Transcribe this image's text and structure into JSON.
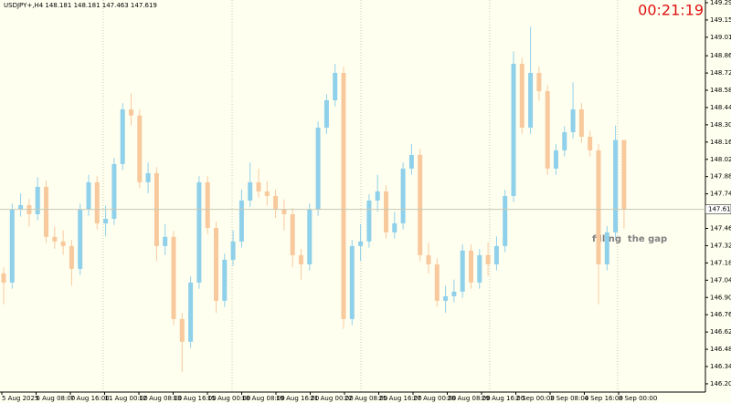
{
  "chart_data": {
    "type": "candlestick",
    "title": "USDJPY+,H4  148.181 148.181 147.463 147.619",
    "clock": "00:21:19",
    "annotation": "filling  the gap",
    "up_color": "#8fd0ea",
    "down_color": "#f8c99c",
    "ylim": [
      146.138,
      149.317
    ],
    "yticks": [
      146.205,
      146.345,
      146.485,
      146.625,
      146.765,
      146.905,
      147.045,
      147.185,
      147.325,
      147.465,
      147.745,
      147.885,
      148.025,
      148.165,
      148.305,
      148.445,
      148.585,
      148.725,
      148.865,
      149.015,
      149.155,
      149.295
    ],
    "x_labels": [
      "5 Aug 2025",
      "6 Aug 08:00",
      "7 Aug 16:00",
      "11 Aug 00:00",
      "12 Aug 08:00",
      "13 Aug 16:00",
      "15 Aug 00:00",
      "18 Aug 08:00",
      "19 Aug 16:00",
      "21 Aug 00:00",
      "22 Aug 08:00",
      "25 Aug 16:00",
      "27 Aug 00:00",
      "28 Aug 08:00",
      "29 Aug 16:00",
      "2 Sep 00:00",
      "3 Sep 08:00",
      "4 Sep 16:00",
      "8 Sep 00:00"
    ],
    "ohlc": [
      [
        147.1,
        147.15,
        146.85,
        147.026
      ],
      [
        147.026,
        147.667,
        146.976,
        147.617
      ],
      [
        147.617,
        147.75,
        147.56,
        147.654
      ],
      [
        147.654,
        147.704,
        147.48,
        147.58
      ],
      [
        147.58,
        147.88,
        147.53,
        147.802
      ],
      [
        147.802,
        147.852,
        147.346,
        147.396
      ],
      [
        147.396,
        147.48,
        147.3,
        147.359
      ],
      [
        147.359,
        147.45,
        147.25,
        147.322
      ],
      [
        147.322,
        147.372,
        147.0,
        147.137
      ],
      [
        147.137,
        147.667,
        147.087,
        147.617
      ],
      [
        147.617,
        147.9,
        147.567,
        147.839
      ],
      [
        147.839,
        147.889,
        147.456,
        147.506
      ],
      [
        147.506,
        147.65,
        147.4,
        147.543
      ],
      [
        147.543,
        148.037,
        147.493,
        147.987
      ],
      [
        147.987,
        148.48,
        147.937,
        148.43
      ],
      [
        148.43,
        148.56,
        148.3,
        148.38
      ],
      [
        148.38,
        148.43,
        147.789,
        147.839
      ],
      [
        147.839,
        148.0,
        147.75,
        147.913
      ],
      [
        147.913,
        147.963,
        147.2,
        147.322
      ],
      [
        147.322,
        147.5,
        147.25,
        147.396
      ],
      [
        147.396,
        147.446,
        146.68,
        146.73
      ],
      [
        146.73,
        146.78,
        146.3,
        146.546
      ],
      [
        146.546,
        147.076,
        146.496,
        147.026
      ],
      [
        147.026,
        147.889,
        146.976,
        147.839
      ],
      [
        147.839,
        147.889,
        147.419,
        147.469
      ],
      [
        147.469,
        147.519,
        146.78,
        146.878
      ],
      [
        146.878,
        147.261,
        146.828,
        147.211
      ],
      [
        147.211,
        147.45,
        147.161,
        147.359
      ],
      [
        147.359,
        147.78,
        147.309,
        147.691
      ],
      [
        147.691,
        148.0,
        147.641,
        147.839
      ],
      [
        147.839,
        147.95,
        147.715,
        147.765
      ],
      [
        147.765,
        147.85,
        147.65,
        147.728
      ],
      [
        147.728,
        147.778,
        147.55,
        147.617
      ],
      [
        147.617,
        147.7,
        147.45,
        147.58
      ],
      [
        147.58,
        147.63,
        147.15,
        147.248
      ],
      [
        147.248,
        147.3,
        147.05,
        147.174
      ],
      [
        147.174,
        147.667,
        147.124,
        147.617
      ],
      [
        147.617,
        148.332,
        147.567,
        148.282
      ],
      [
        148.282,
        148.554,
        148.232,
        148.504
      ],
      [
        148.504,
        148.8,
        148.454,
        148.726
      ],
      [
        148.726,
        148.776,
        146.65,
        146.73
      ],
      [
        146.73,
        147.372,
        146.68,
        147.322
      ],
      [
        147.322,
        147.5,
        147.2,
        147.359
      ],
      [
        147.359,
        147.741,
        147.309,
        147.691
      ],
      [
        147.691,
        147.9,
        147.6,
        147.765
      ],
      [
        147.765,
        147.815,
        147.383,
        147.433
      ],
      [
        147.433,
        147.6,
        147.383,
        147.506
      ],
      [
        147.506,
        148.0,
        147.456,
        147.95
      ],
      [
        147.95,
        148.15,
        147.9,
        148.061
      ],
      [
        148.061,
        148.111,
        147.198,
        147.248
      ],
      [
        147.248,
        147.35,
        147.1,
        147.174
      ],
      [
        147.174,
        147.224,
        146.828,
        146.878
      ],
      [
        146.878,
        147.0,
        146.78,
        146.915
      ],
      [
        146.915,
        147.05,
        146.865,
        146.952
      ],
      [
        146.952,
        147.335,
        146.902,
        147.285
      ],
      [
        147.285,
        147.335,
        146.976,
        147.026
      ],
      [
        147.026,
        147.298,
        146.976,
        147.248
      ],
      [
        147.248,
        147.35,
        147.08,
        147.174
      ],
      [
        147.174,
        147.4,
        147.124,
        147.322
      ],
      [
        147.322,
        147.778,
        147.272,
        147.728
      ],
      [
        147.728,
        148.9,
        147.678,
        148.8
      ],
      [
        148.8,
        148.85,
        148.232,
        148.282
      ],
      [
        148.282,
        149.1,
        148.232,
        148.726
      ],
      [
        148.726,
        148.776,
        148.5,
        148.578
      ],
      [
        148.578,
        148.628,
        147.9,
        147.95
      ],
      [
        147.95,
        148.148,
        147.9,
        148.098
      ],
      [
        148.098,
        148.295,
        148.048,
        148.245
      ],
      [
        148.245,
        148.65,
        148.195,
        148.43
      ],
      [
        148.43,
        148.48,
        148.158,
        148.208
      ],
      [
        148.208,
        148.258,
        148.048,
        148.098
      ],
      [
        148.098,
        148.148,
        146.85,
        147.174
      ],
      [
        147.174,
        147.483,
        147.124,
        147.433
      ],
      [
        147.433,
        148.3,
        147.383,
        148.181
      ],
      [
        148.181,
        148.181,
        147.463,
        147.619
      ]
    ]
  }
}
